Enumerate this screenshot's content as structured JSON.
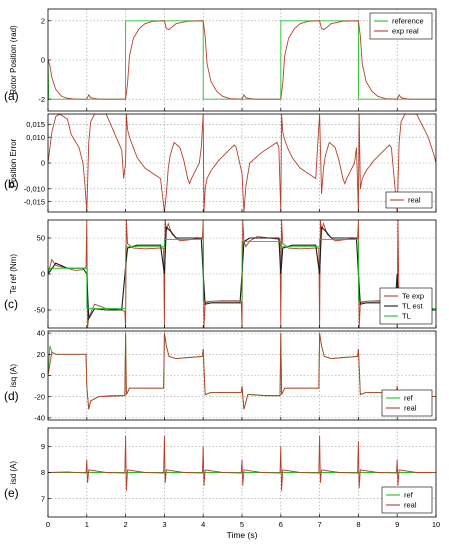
{
  "chart_data": [
    {
      "type": "line",
      "panel_label": "(a)",
      "ylabel": "Rotor Position (rad)",
      "xlim": [
        0,
        10
      ],
      "ylim": [
        -2.6,
        2.6
      ],
      "yticks": [
        -2,
        0,
        2
      ],
      "ytick_labels": [
        "-2",
        "0",
        "2"
      ],
      "grid": true,
      "legend_position": "top-right",
      "series": [
        {
          "name": "reference",
          "color": "#22c02c",
          "x": [
            0,
            0.02,
            2,
            2.001,
            4,
            4.001,
            6,
            6.001,
            8,
            8.001,
            10
          ],
          "y": [
            0,
            -2,
            -2,
            2,
            2,
            -2,
            -2,
            2,
            2,
            -2,
            -2
          ]
        },
        {
          "name": "exp real",
          "color": "#b5402c",
          "x": [
            0,
            0.05,
            0.1,
            0.2,
            0.35,
            0.5,
            0.7,
            1,
            1.05,
            1.1,
            1.3,
            2,
            2.05,
            2.1,
            2.2,
            2.35,
            2.5,
            2.7,
            3,
            3.05,
            3.12,
            3.3,
            3.6,
            4,
            4.05,
            4.1,
            4.2,
            4.35,
            4.5,
            4.7,
            5,
            5.05,
            5.1,
            5.3,
            6,
            6.05,
            6.1,
            6.2,
            6.35,
            6.5,
            6.7,
            7,
            7.05,
            7.12,
            7.3,
            7.6,
            8,
            8.05,
            8.1,
            8.2,
            8.35,
            8.5,
            8.7,
            9,
            9.05,
            9.1,
            9.3,
            10
          ],
          "y": [
            0,
            -0.3,
            -0.9,
            -1.5,
            -1.85,
            -1.95,
            -2,
            -2,
            -1.78,
            -1.92,
            -2,
            -2,
            -1.2,
            0.2,
            1.1,
            1.6,
            1.85,
            1.97,
            2,
            1.6,
            1.55,
            1.85,
            1.98,
            2,
            1.2,
            -0.2,
            -1.1,
            -1.6,
            -1.85,
            -1.97,
            -2,
            -1.78,
            -1.92,
            -2,
            -2,
            -1.2,
            0.2,
            1.1,
            1.6,
            1.85,
            1.97,
            2,
            1.6,
            1.55,
            1.85,
            1.98,
            2,
            1.2,
            -0.2,
            -1.1,
            -1.6,
            -1.85,
            -1.97,
            -2,
            -1.78,
            -1.92,
            -2,
            -2
          ]
        }
      ]
    },
    {
      "type": "line",
      "panel_label": "(b)",
      "ylabel": "Position Error",
      "xlim": [
        0,
        10
      ],
      "ylim": [
        -0.019,
        0.019
      ],
      "yticks": [
        -0.015,
        -0.01,
        0,
        0.01,
        0.015
      ],
      "ytick_labels": [
        "-0,015",
        "-0,010",
        "0",
        "0,010",
        "0,015"
      ],
      "grid": true,
      "legend_position": "bottom-right",
      "series": [
        {
          "name": "real",
          "color": "#b5402c",
          "x": [
            0,
            0.1,
            0.2,
            0.3,
            0.5,
            0.6,
            0.8,
            0.9,
            0.95,
            1.0,
            1.05,
            1.1,
            1.2,
            1.5,
            1.9,
            1.95,
            2.0,
            2.02,
            2.05,
            2.1,
            2.2,
            2.3,
            2.5,
            2.7,
            2.9,
            3.0,
            3.05,
            3.1,
            3.15,
            3.25,
            3.4,
            3.5,
            3.6,
            3.65,
            3.7,
            3.9,
            3.95,
            4.0,
            4.02,
            4.05,
            4.1,
            4.2,
            4.4,
            4.6,
            4.8,
            4.85,
            5.0,
            5.05,
            5.1,
            5.2,
            5.5,
            5.9,
            5.95,
            6.0,
            6.02,
            6.05,
            6.1,
            6.2,
            6.3,
            6.5,
            6.7,
            6.9,
            7.0,
            7.05,
            7.1,
            7.15,
            7.25,
            7.4,
            7.5,
            7.6,
            7.65,
            7.7,
            7.9,
            7.95,
            8.0,
            8.02,
            8.05,
            8.1,
            8.2,
            8.4,
            8.6,
            8.8,
            8.85,
            9.0,
            9.05,
            9.1,
            9.2,
            9.5,
            9.8,
            9.95,
            10
          ],
          "y": [
            0,
            0.012,
            0.018,
            0.019,
            0.017,
            0.011,
            0.006,
            0.0,
            -0.008,
            -0.019,
            0.008,
            0.016,
            0.019,
            0.019,
            0.005,
            -0.006,
            0.0,
            0.019,
            0.013,
            0.01,
            0.006,
            0.002,
            -0.002,
            -0.004,
            -0.006,
            -0.019,
            -0.012,
            -0.002,
            0.003,
            0.008,
            0.006,
            0.001,
            -0.006,
            -0.008,
            -0.006,
            0.0,
            0.006,
            0.019,
            -0.019,
            -0.01,
            -0.006,
            -0.003,
            0.001,
            0.004,
            0.007,
            0.006,
            -0.004,
            -0.019,
            -0.009,
            0.0,
            0.004,
            0.008,
            0.006,
            -0.019,
            0.019,
            0.012,
            0.009,
            0.005,
            0.002,
            -0.002,
            -0.004,
            -0.006,
            0.019,
            -0.012,
            -0.002,
            0.003,
            0.008,
            0.006,
            0.001,
            -0.006,
            -0.008,
            -0.006,
            0.0,
            0.006,
            -0.019,
            0.019,
            -0.01,
            -0.006,
            -0.003,
            0.001,
            0.004,
            0.007,
            0.006,
            -0.019,
            0.008,
            0.016,
            0.019,
            0.019,
            0.01,
            0.003,
            0.0
          ]
        }
      ]
    },
    {
      "type": "line",
      "panel_label": "(c)",
      "ylabel": "Te ref  (Nm)",
      "xlim": [
        0,
        10
      ],
      "ylim": [
        -75,
        75
      ],
      "yticks": [
        -50,
        0,
        50
      ],
      "ytick_labels": [
        "-50",
        "0",
        "50"
      ],
      "grid": true,
      "legend_position": "bottom-right",
      "series": [
        {
          "name": "Te exp",
          "color": "#b5402c",
          "x": [
            0,
            0.1,
            0.2,
            0.35,
            0.5,
            0.7,
            0.9,
            0.98,
            1.0,
            1.02,
            1.05,
            1.2,
            1.5,
            1.9,
            1.98,
            2.0,
            2.02,
            2.05,
            2.2,
            2.5,
            2.9,
            2.98,
            3.0,
            3.02,
            3.05,
            3.1,
            3.2,
            3.4,
            3.7,
            3.98,
            4.0,
            4.02,
            4.05,
            4.2,
            4.5,
            4.9,
            4.98,
            5.0,
            5.02,
            5.05,
            5.1,
            5.2,
            5.4,
            5.7,
            5.98,
            6.0,
            6.02,
            6.05,
            6.2,
            6.5,
            6.9,
            6.98,
            7.0,
            7.02,
            7.05,
            7.1,
            7.2,
            7.4,
            7.7,
            7.98,
            8.0,
            8.02,
            8.05,
            8.2,
            8.5,
            8.9,
            8.98,
            9.0,
            9.02,
            9.05,
            9.1,
            9.2,
            9.4,
            9.7,
            10
          ],
          "y": [
            0,
            20,
            12,
            10,
            8,
            5,
            6,
            10,
            75,
            -75,
            -60,
            -42,
            -48,
            -50,
            -52,
            -75,
            75,
            42,
            36,
            35,
            36,
            36,
            -75,
            75,
            60,
            70,
            55,
            46,
            48,
            50,
            75,
            -75,
            -40,
            -38,
            -37,
            -37,
            -38,
            -75,
            75,
            45,
            38,
            46,
            52,
            50,
            48,
            -75,
            75,
            42,
            36,
            35,
            36,
            36,
            -75,
            75,
            60,
            70,
            55,
            46,
            48,
            50,
            75,
            -75,
            -40,
            -38,
            -37,
            -37,
            -38,
            -75,
            75,
            -62,
            -50,
            -46,
            -50,
            -48,
            -50
          ]
        },
        {
          "name": "TL est",
          "color": "#1a1a1a",
          "x": [
            0,
            0.2,
            0.5,
            0.9,
            1.0,
            1.05,
            1.2,
            1.5,
            1.9,
            2.0,
            2.05,
            2.3,
            2.9,
            3.0,
            3.05,
            3.15,
            3.3,
            3.6,
            3.95,
            4.0,
            4.05,
            4.2,
            4.6,
            4.95,
            5.0,
            5.05,
            5.2,
            5.6,
            5.95,
            6.0,
            6.05,
            6.3,
            6.9,
            7.0,
            7.05,
            7.15,
            7.3,
            7.6,
            7.95,
            8.0,
            8.05,
            8.2,
            8.6,
            8.95,
            9.0,
            9.05,
            9.2,
            9.6,
            10
          ],
          "y": [
            0,
            15,
            8,
            8,
            0,
            -62,
            -48,
            -50,
            -50,
            10,
            36,
            40,
            40,
            0,
            65,
            60,
            50,
            50,
            50,
            0,
            -42,
            -40,
            -40,
            -40,
            0,
            45,
            50,
            50,
            50,
            0,
            36,
            40,
            40,
            0,
            65,
            60,
            50,
            50,
            50,
            0,
            -42,
            -40,
            -40,
            -40,
            0,
            -60,
            -48,
            -50,
            -50
          ]
        },
        {
          "name": "TL",
          "color": "#22c02c",
          "x": [
            0,
            0.02,
            1,
            1.001,
            2,
            2.001,
            3,
            3.001,
            4,
            4.001,
            5,
            5.001,
            6,
            6.001,
            7,
            7.001,
            8,
            8.001,
            9,
            9.001,
            10
          ],
          "y": [
            0,
            8,
            8,
            -48,
            -48,
            38,
            38,
            48,
            48,
            -38,
            -38,
            45,
            45,
            38,
            38,
            48,
            48,
            -38,
            -38,
            -48,
            -48
          ]
        }
      ]
    },
    {
      "type": "line",
      "panel_label": "(d)",
      "ylabel": "isq  (A)",
      "xlim": [
        0,
        10
      ],
      "ylim": [
        -42,
        42
      ],
      "yticks": [
        -40,
        -20,
        0,
        20,
        40
      ],
      "ytick_labels": [
        "-40",
        "-20",
        "0",
        "20",
        "40"
      ],
      "grid": true,
      "legend_position": "bottom-right",
      "series": [
        {
          "name": "ref",
          "color": "#22c02c",
          "x": [
            0,
            0.05,
            0.1,
            0.2,
            0.4,
            0.6,
            0.98,
            1.0,
            1.05,
            1.1,
            1.3,
            1.6,
            1.98,
            2.0,
            2.02,
            2.1,
            2.4,
            2.98,
            3.0,
            3.05,
            3.12,
            3.3,
            3.6,
            3.98,
            4.0,
            4.05,
            4.2,
            4.6,
            4.98,
            5.0,
            5.05,
            5.15,
            5.3,
            5.6,
            5.98,
            6.0,
            6.02,
            6.1,
            6.4,
            6.98,
            7.0,
            7.05,
            7.12,
            7.3,
            7.6,
            7.98,
            8.0,
            8.05,
            8.2,
            8.6,
            8.98,
            9.0,
            9.05,
            9.15,
            9.3,
            9.6,
            10
          ],
          "y": [
            0,
            28,
            22,
            20,
            20,
            20,
            20,
            -10,
            -32,
            -24,
            -20,
            -19,
            -19,
            40,
            -18,
            -12,
            -12,
            -12,
            40,
            28,
            18,
            16,
            17,
            18,
            25,
            -18,
            -16,
            -16,
            -16,
            -10,
            -32,
            -18,
            -18,
            -19,
            -19,
            40,
            -18,
            -12,
            -12,
            -12,
            40,
            28,
            18,
            16,
            17,
            18,
            25,
            -18,
            -16,
            -16,
            -16,
            -10,
            -30,
            -24,
            -20,
            -19,
            -20
          ]
        },
        {
          "name": "real",
          "color": "#b5402c",
          "x": [
            0,
            0.1,
            0.2,
            0.4,
            0.98,
            1.0,
            1.05,
            1.1,
            1.3,
            1.98,
            2.0,
            2.02,
            2.1,
            2.98,
            3.0,
            3.05,
            3.12,
            3.3,
            3.98,
            4.0,
            4.05,
            4.2,
            4.98,
            5.0,
            5.05,
            5.15,
            5.6,
            5.98,
            6.0,
            6.02,
            6.1,
            6.98,
            7.0,
            7.05,
            7.12,
            7.3,
            7.98,
            8.0,
            8.05,
            8.2,
            8.98,
            9.0,
            9.05,
            9.15,
            9.6,
            10
          ],
          "y": [
            0,
            22,
            20,
            20,
            20,
            -10,
            -32,
            -24,
            -20,
            -19,
            40,
            -18,
            -12,
            -12,
            40,
            28,
            18,
            16,
            18,
            25,
            -18,
            -16,
            -16,
            -10,
            -32,
            -18,
            -19,
            -19,
            40,
            -18,
            -12,
            -12,
            40,
            28,
            18,
            16,
            18,
            25,
            -18,
            -16,
            -16,
            -10,
            -30,
            -24,
            -19,
            -20
          ]
        }
      ]
    },
    {
      "type": "line",
      "panel_label": "(e)",
      "ylabel": "isd  (A)",
      "xlim": [
        0,
        10
      ],
      "ylim": [
        6.3,
        9.7
      ],
      "yticks": [
        7,
        8,
        9
      ],
      "ytick_labels": [
        "7",
        "8",
        "9"
      ],
      "xticks": [
        0,
        1,
        2,
        3,
        4,
        5,
        6,
        7,
        8,
        9,
        10
      ],
      "xtick_labels": [
        "0",
        "1",
        "2",
        "3",
        "4",
        "5",
        "6",
        "7",
        "8",
        "9",
        "10"
      ],
      "xlabel": "Time (s)",
      "grid": true,
      "legend_position": "bottom-right",
      "series": [
        {
          "name": "ref",
          "color": "#22c02c",
          "x": [
            0,
            10
          ],
          "y": [
            8,
            8
          ]
        },
        {
          "name": "real",
          "color": "#b5402c",
          "x": [
            0,
            0.5,
            0.98,
            1.0,
            1.02,
            1.05,
            1.5,
            1.98,
            2.0,
            2.02,
            2.05,
            2.5,
            2.98,
            3.0,
            3.02,
            3.05,
            3.5,
            3.98,
            4.0,
            4.02,
            4.05,
            4.5,
            4.98,
            5.0,
            5.02,
            5.05,
            5.5,
            5.98,
            6.0,
            6.02,
            6.05,
            6.5,
            6.98,
            7.0,
            7.02,
            7.05,
            7.5,
            7.98,
            8.0,
            8.02,
            8.05,
            8.5,
            8.98,
            9.0,
            9.02,
            9.05,
            9.5,
            10
          ],
          "y": [
            8,
            8.02,
            7.98,
            8.5,
            7.6,
            8.1,
            8.0,
            7.98,
            9.4,
            7.3,
            8.1,
            8.0,
            7.98,
            9.4,
            7.6,
            8.1,
            8.0,
            7.98,
            9.0,
            7.5,
            8.1,
            8.0,
            7.98,
            8.5,
            7.5,
            8.1,
            8.0,
            7.98,
            9.0,
            7.3,
            8.1,
            8.0,
            7.98,
            9.4,
            7.6,
            8.1,
            8.0,
            7.98,
            9.2,
            7.4,
            8.1,
            8.0,
            7.98,
            8.5,
            7.5,
            8.1,
            8.0,
            8.0
          ]
        }
      ]
    }
  ]
}
